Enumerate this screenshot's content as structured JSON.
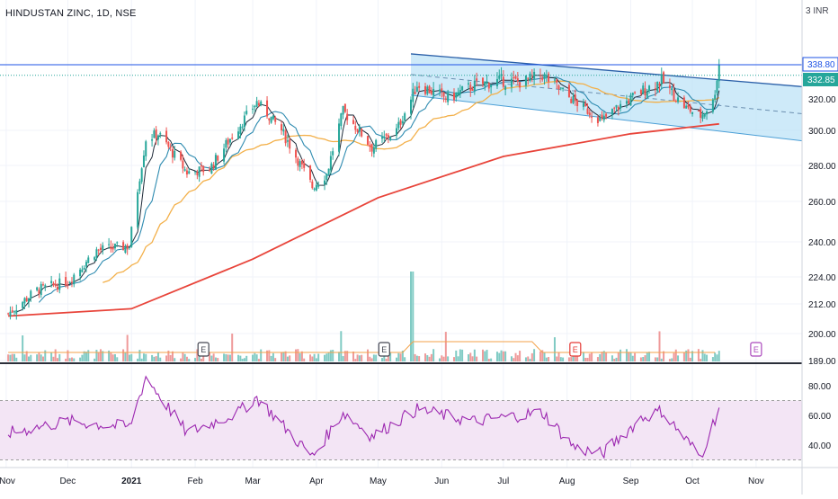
{
  "header": {
    "symbol_line": "HINDUSTAN ZINC, 1D, NSE",
    "currency_badge": "INR",
    "currency_prefix": "3"
  },
  "price_axis": {
    "ticks": [
      "338.80",
      "332.85",
      "320.00",
      "300.00",
      "280.00",
      "260.00",
      "240.00",
      "224.00",
      "212.00",
      "200.00",
      "189.00"
    ],
    "last_price_label": "338.80",
    "prev_price_label": "332.85"
  },
  "rsi_axis": {
    "ticks": [
      "80.00",
      "60.00",
      "40.00"
    ]
  },
  "time_axis": {
    "labels": [
      "Nov",
      "Dec",
      "2021",
      "Feb",
      "Mar",
      "Apr",
      "May",
      "Jun",
      "Jul",
      "Aug",
      "Sep",
      "Oct",
      "Nov"
    ]
  },
  "earnings_markers": [
    "E",
    "E",
    "E",
    "E"
  ],
  "colors": {
    "up": "#26a69a",
    "down": "#ef5350",
    "ma_fast": "#1e2a38",
    "ma_mid": "#2e8bb0",
    "ma_slow": "#f3b04a",
    "ma_long": "#e8443a",
    "channel_fill": "#bde3f7",
    "channel_line": "#4b9fd6",
    "rsi_line": "#9c27b0",
    "rsi_fill": "#f3e5f5",
    "last_price": "#1e53e5"
  },
  "chart_data": [
    {
      "type": "candlestick",
      "title": "HINDUSTAN ZINC, 1D, NSE",
      "x_range": [
        "Nov 2020",
        "Nov 2021"
      ],
      "ylim": [
        189,
        345
      ],
      "scale": "log",
      "price_path": [
        {
          "x": "2020-11-02",
          "y": 208
        },
        {
          "x": "2020-11-16",
          "y": 218
        },
        {
          "x": "2020-12-01",
          "y": 222
        },
        {
          "x": "2020-12-15",
          "y": 236
        },
        {
          "x": "2020-12-31",
          "y": 238
        },
        {
          "x": "2021-01-08",
          "y": 295
        },
        {
          "x": "2021-01-14",
          "y": 298
        },
        {
          "x": "2021-01-28",
          "y": 276
        },
        {
          "x": "2021-02-08",
          "y": 278
        },
        {
          "x": "2021-02-22",
          "y": 302
        },
        {
          "x": "2021-03-03",
          "y": 318
        },
        {
          "x": "2021-03-15",
          "y": 300
        },
        {
          "x": "2021-03-30",
          "y": 268
        },
        {
          "x": "2021-04-06",
          "y": 275
        },
        {
          "x": "2021-04-14",
          "y": 312
        },
        {
          "x": "2021-04-28",
          "y": 290
        },
        {
          "x": "2021-05-10",
          "y": 300
        },
        {
          "x": "2021-05-20",
          "y": 328
        },
        {
          "x": "2021-06-04",
          "y": 320
        },
        {
          "x": "2021-06-16",
          "y": 327
        },
        {
          "x": "2021-06-30",
          "y": 330
        },
        {
          "x": "2021-07-10",
          "y": 329
        },
        {
          "x": "2021-07-20",
          "y": 333
        },
        {
          "x": "2021-08-05",
          "y": 318
        },
        {
          "x": "2021-08-18",
          "y": 306
        },
        {
          "x": "2021-08-26",
          "y": 315
        },
        {
          "x": "2021-09-06",
          "y": 324
        },
        {
          "x": "2021-09-16",
          "y": 330
        },
        {
          "x": "2021-09-28",
          "y": 314
        },
        {
          "x": "2021-10-05",
          "y": 309
        },
        {
          "x": "2021-10-11",
          "y": 318
        },
        {
          "x": "2021-10-14",
          "y": 338.8
        }
      ],
      "moving_average_200": [
        {
          "x": "2020-11-02",
          "y": 207
        },
        {
          "x": "2021-01-01",
          "y": 210
        },
        {
          "x": "2021-03-01",
          "y": 232
        },
        {
          "x": "2021-05-01",
          "y": 262
        },
        {
          "x": "2021-07-01",
          "y": 285
        },
        {
          "x": "2021-09-01",
          "y": 298
        },
        {
          "x": "2021-10-14",
          "y": 304
        }
      ],
      "channel": {
        "upper": [
          {
            "x": "2021-05-17",
            "y": 345
          },
          {
            "x": "2021-11-30",
            "y": 326
          }
        ],
        "lower": [
          {
            "x": "2021-05-17",
            "y": 322
          },
          {
            "x": "2021-11-30",
            "y": 293
          }
        ]
      },
      "last_price": 338.8,
      "prev_close_line": 332.85
    },
    {
      "type": "line",
      "title": "RSI",
      "ylim": [
        30,
        85
      ],
      "bands": [
        70,
        30
      ],
      "values": [
        {
          "x": "2020-11-02",
          "y": 48
        },
        {
          "x": "2020-12-01",
          "y": 56
        },
        {
          "x": "2020-12-31",
          "y": 52
        },
        {
          "x": "2021-01-08",
          "y": 86
        },
        {
          "x": "2021-01-28",
          "y": 48
        },
        {
          "x": "2021-02-22",
          "y": 62
        },
        {
          "x": "2021-03-03",
          "y": 72
        },
        {
          "x": "2021-03-30",
          "y": 32
        },
        {
          "x": "2021-04-14",
          "y": 62
        },
        {
          "x": "2021-04-28",
          "y": 46
        },
        {
          "x": "2021-05-20",
          "y": 64
        },
        {
          "x": "2021-06-16",
          "y": 56
        },
        {
          "x": "2021-07-20",
          "y": 62
        },
        {
          "x": "2021-08-05",
          "y": 38
        },
        {
          "x": "2021-08-18",
          "y": 34
        },
        {
          "x": "2021-09-06",
          "y": 58
        },
        {
          "x": "2021-09-16",
          "y": 63
        },
        {
          "x": "2021-10-05",
          "y": 32
        },
        {
          "x": "2021-10-14",
          "y": 65
        }
      ]
    }
  ]
}
